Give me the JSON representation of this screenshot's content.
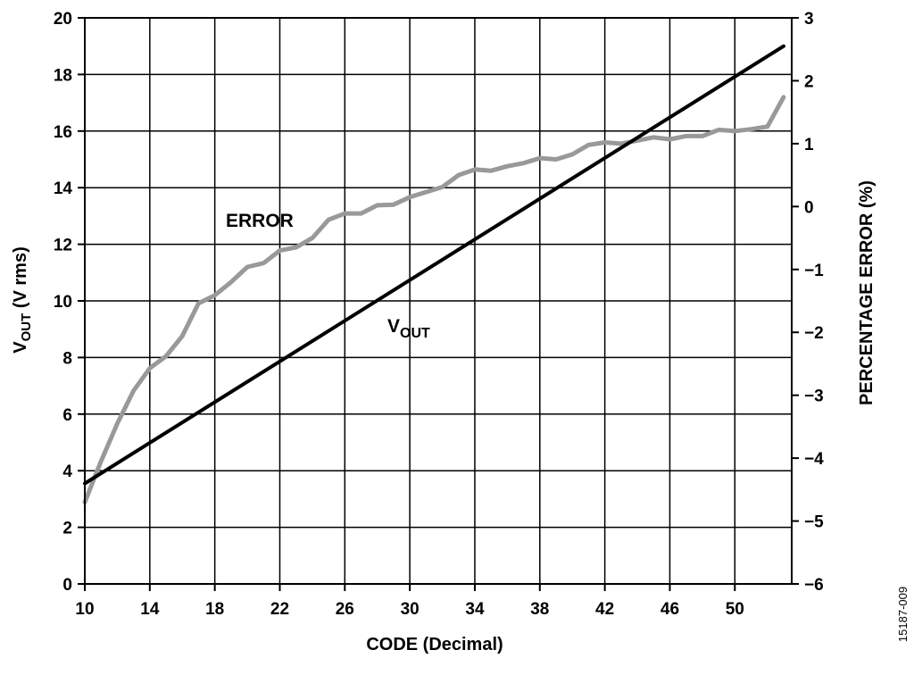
{
  "chart_data": {
    "type": "line",
    "xlabel": "CODE (Decimal)",
    "ylabel": {
      "main": "V",
      "sub": "OUT",
      "rest": " (V rms)"
    },
    "y2label": "PERCENTAGE ERROR (%)",
    "xlim": [
      10,
      53.5
    ],
    "ylim": [
      0,
      20
    ],
    "y2lim": [
      -6,
      3
    ],
    "x_ticks": [
      "10",
      "14",
      "18",
      "22",
      "26",
      "30",
      "34",
      "38",
      "42",
      "46",
      "50"
    ],
    "x_tick_values": [
      10,
      14,
      18,
      22,
      26,
      30,
      34,
      38,
      42,
      46,
      50
    ],
    "y_ticks": [
      "0",
      "2",
      "4",
      "6",
      "8",
      "10",
      "12",
      "14",
      "16",
      "18",
      "20"
    ],
    "y_tick_values": [
      0,
      2,
      4,
      6,
      8,
      10,
      12,
      14,
      16,
      18,
      20
    ],
    "y2_ticks": [
      "3",
      "2",
      "1",
      "0",
      "−1",
      "−2",
      "−3",
      "−4",
      "−5",
      "−6"
    ],
    "y2_tick_values": [
      3,
      2,
      1,
      0,
      -1,
      -2,
      -3,
      -4,
      -5,
      -6
    ],
    "grid": true,
    "series": [
      {
        "name": "ERROR",
        "axis": "right",
        "color": "#999999",
        "x": [
          10,
          11,
          12,
          13,
          14,
          15,
          16,
          17,
          18,
          19,
          20,
          21,
          22,
          23,
          24,
          25,
          26,
          27,
          28,
          29,
          30,
          31,
          32,
          33,
          34,
          35,
          36,
          37,
          38,
          39,
          40,
          41,
          42,
          43,
          44,
          45,
          46,
          47,
          48,
          49,
          50,
          51,
          52,
          53
        ],
        "y": [
          -4.7,
          -4.05,
          -3.45,
          -2.93,
          -2.57,
          -2.38,
          -2.06,
          -1.54,
          -1.41,
          -1.2,
          -0.96,
          -0.9,
          -0.7,
          -0.65,
          -0.5,
          -0.21,
          -0.11,
          -0.11,
          0.02,
          0.03,
          0.15,
          0.23,
          0.31,
          0.5,
          0.59,
          0.57,
          0.64,
          0.69,
          0.77,
          0.75,
          0.83,
          0.98,
          1.02,
          1.0,
          1.05,
          1.1,
          1.07,
          1.12,
          1.12,
          1.22,
          1.2,
          1.23,
          1.27,
          1.74
        ]
      },
      {
        "name": "VOUT",
        "axis": "left",
        "color": "#000000",
        "x": [
          10,
          53
        ],
        "y": [
          3.55,
          19.0
        ]
      }
    ]
  },
  "labels": {
    "error": "ERROR",
    "vout_main": "V",
    "vout_sub": "OUT",
    "figure_id": "15187-009"
  }
}
